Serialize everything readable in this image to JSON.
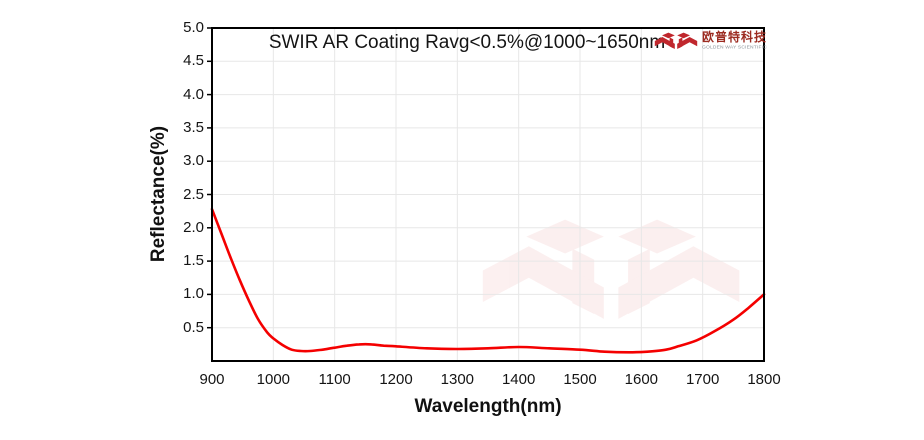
{
  "header": {
    "logo": {
      "company_cn": "欧普特科技",
      "company_en": "GOLDEN WAY SCIENTIFIC",
      "emblem_color": "#c0272d",
      "cn_text_color": "#9c2b21",
      "en_text_color": "#8a9399"
    }
  },
  "watermark": {
    "color": "#d43c3c",
    "opacity": 0.08
  },
  "chart_data": {
    "type": "line",
    "title": "SWIR AR Coating Ravg<0.5%@1000~1650nm",
    "xlabel": "Wavelength(nm)",
    "ylabel": "Reflectance(%)",
    "xlim": [
      900,
      1800
    ],
    "ylim": [
      0,
      5
    ],
    "x_ticks": [
      900,
      1000,
      1100,
      1200,
      1300,
      1400,
      1500,
      1600,
      1700,
      1800
    ],
    "y_ticks": [
      5.0,
      4.5,
      4.0,
      3.5,
      3.0,
      2.5,
      2.0,
      1.5,
      1.0,
      0.5
    ],
    "grid": true,
    "grid_color": "#e7e7e7",
    "line_color": "#f40000",
    "axis_color": "#000000",
    "series": [
      {
        "x": [
          900,
          915,
          930,
          945,
          960,
          975,
          990,
          1000,
          1015,
          1030,
          1045,
          1060,
          1080,
          1100,
          1120,
          1140,
          1160,
          1180,
          1200,
          1250,
          1300,
          1350,
          1400,
          1450,
          1500,
          1540,
          1580,
          1610,
          1640,
          1660,
          1690,
          1720,
          1750,
          1775,
          1800
        ],
        "y": [
          2.28,
          1.92,
          1.56,
          1.22,
          0.91,
          0.63,
          0.43,
          0.34,
          0.24,
          0.17,
          0.15,
          0.15,
          0.17,
          0.2,
          0.23,
          0.25,
          0.25,
          0.23,
          0.22,
          0.19,
          0.18,
          0.19,
          0.21,
          0.19,
          0.17,
          0.14,
          0.13,
          0.14,
          0.17,
          0.22,
          0.31,
          0.45,
          0.62,
          0.8,
          1.0
        ]
      }
    ]
  }
}
